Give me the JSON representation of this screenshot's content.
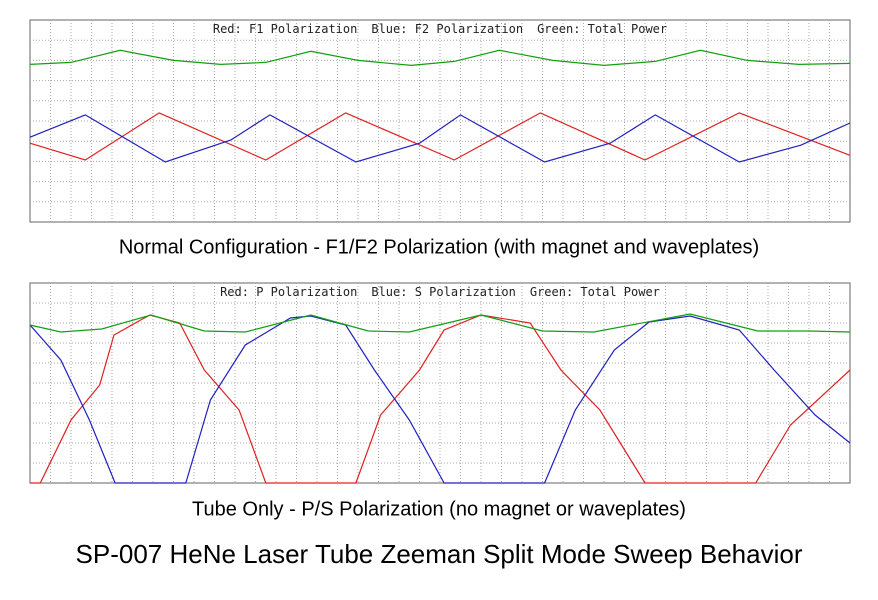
{
  "title": "SP-007 HeNe Laser Tube Zeeman Split Mode Sweep Behavior",
  "chart_data": [
    {
      "type": "line",
      "caption": "Normal Configuration - F1/F2 Polarization (with magnet and waveplates)",
      "xlim": [
        0,
        40
      ],
      "ylim": [
        0,
        10
      ],
      "series": [
        {
          "name": "Red: F1 Polarization",
          "color": "#e02020",
          "x": [
            0,
            2.7,
            6.3,
            11.5,
            15.4,
            20.7,
            24.9,
            30,
            34.6,
            40
          ],
          "values": [
            3.9,
            3.07,
            5.4,
            3.07,
            5.4,
            3.07,
            5.4,
            3.07,
            5.4,
            3.3
          ]
        },
        {
          "name": "Blue: F2 Polarization",
          "color": "#2020c0",
          "x": [
            0,
            2.7,
            6.6,
            9.8,
            11.7,
            15.9,
            19,
            21,
            25.1,
            28.3,
            30.5,
            34.6,
            37.6,
            40
          ],
          "values": [
            4.2,
            5.3,
            2.97,
            4.06,
            5.3,
            2.97,
            3.9,
            5.3,
            2.97,
            3.9,
            5.3,
            2.97,
            3.8,
            4.9
          ]
        },
        {
          "name": "Green: Total Power",
          "color": "#10a010",
          "x": [
            0,
            2,
            4.4,
            7,
            9.3,
            11.5,
            13.7,
            16,
            18.6,
            20.7,
            22.9,
            25.5,
            28,
            30.5,
            32.7,
            35,
            37.5,
            40
          ],
          "values": [
            7.8,
            7.9,
            8.5,
            8.0,
            7.8,
            7.9,
            8.45,
            8.0,
            7.75,
            7.95,
            8.5,
            8.0,
            7.75,
            7.95,
            8.5,
            8.0,
            7.8,
            7.85
          ]
        }
      ]
    },
    {
      "type": "line",
      "caption": "Tube Only - P/S Polarization (no magnet or waveplates)",
      "xlim": [
        0,
        40
      ],
      "ylim": [
        0,
        10
      ],
      "series": [
        {
          "name": "Red: P Polarization",
          "color": "#e02020",
          "x": [
            0,
            0.5,
            2,
            3.4,
            4.1,
            5.4,
            5.85,
            7.3,
            8.5,
            10.2,
            11.5,
            15.9,
            17.1,
            19,
            20.2,
            22,
            24.4,
            25.9,
            27.8,
            30,
            35.4,
            37.1,
            40
          ],
          "values": [
            0,
            0,
            3.15,
            4.9,
            7.4,
            8.15,
            8.4,
            8.0,
            5.65,
            3.65,
            0,
            0,
            3.4,
            5.65,
            7.65,
            8.4,
            8.0,
            5.65,
            3.65,
            0,
            0,
            2.9,
            5.65
          ]
        },
        {
          "name": "Blue: S Polarization",
          "color": "#2020c0",
          "x": [
            0,
            1.5,
            2.9,
            4.15,
            7.6,
            8.8,
            10.5,
            12.7,
            13.7,
            15.4,
            16.8,
            18.5,
            20.2,
            25.1,
            26.6,
            28.5,
            30.2,
            32.2,
            34.6,
            36.3,
            38.3,
            40
          ],
          "values": [
            7.9,
            6.15,
            3.15,
            0,
            0,
            4.15,
            6.9,
            8.25,
            8.35,
            7.9,
            5.65,
            3.15,
            0,
            0,
            3.65,
            6.65,
            8.05,
            8.35,
            7.65,
            5.65,
            3.4,
            2.0
          ]
        },
        {
          "name": "Green: Total Power",
          "color": "#10a010",
          "x": [
            0,
            1.5,
            3.5,
            5.9,
            8.5,
            10.5,
            13.7,
            16.5,
            18.5,
            22,
            25,
            27.5,
            32.2,
            35.5,
            38,
            40
          ],
          "values": [
            7.9,
            7.55,
            7.7,
            8.4,
            7.6,
            7.55,
            8.4,
            7.6,
            7.55,
            8.4,
            7.6,
            7.55,
            8.45,
            7.6,
            7.6,
            7.55
          ]
        }
      ]
    }
  ]
}
